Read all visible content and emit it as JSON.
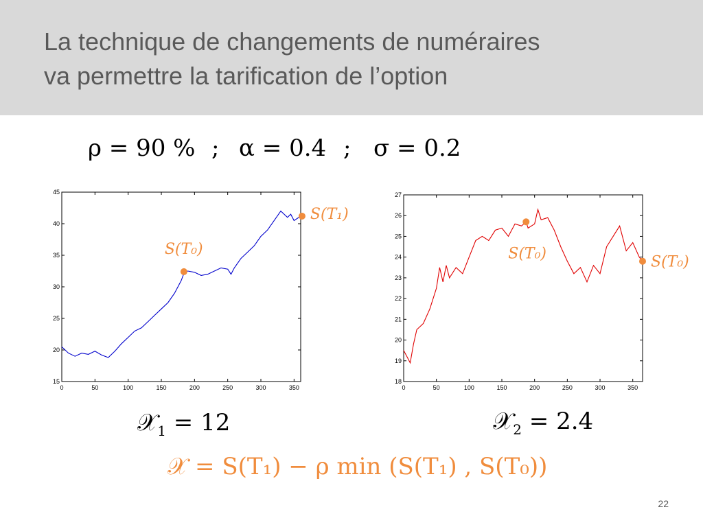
{
  "title": {
    "line1": "La technique de changements de numéraires",
    "line2": "va permettre la tarification de l’option"
  },
  "params": {
    "rho": "ρ = 90 %",
    "sep1": ";",
    "alpha": "α = 0.4",
    "sep2": ";",
    "sigma": "σ = 0.2"
  },
  "results": {
    "x1": {
      "symbol": "𝒳",
      "sub": "1",
      "value": " = 12"
    },
    "x2": {
      "symbol": "𝒳",
      "sub": "2",
      "value": " = 2.4"
    }
  },
  "formula": "𝒳 = S(T₁) − ρ min (S(T₁) , S(T₀))",
  "page_number": "22",
  "colors": {
    "annotation": "#f08c3c",
    "series1": "#0000cc",
    "series2": "#e00000"
  },
  "chart_data": [
    {
      "type": "line",
      "xlim": [
        0,
        360
      ],
      "ylim": [
        15,
        45
      ],
      "xticks": [
        0,
        50,
        100,
        150,
        200,
        250,
        300,
        350
      ],
      "yticks": [
        15,
        20,
        25,
        30,
        35,
        40,
        45
      ],
      "grid": false,
      "series": [
        {
          "color": "#0000cc",
          "x": [
            0,
            10,
            20,
            30,
            40,
            50,
            60,
            70,
            80,
            90,
            100,
            110,
            120,
            130,
            140,
            150,
            160,
            170,
            180,
            185,
            190,
            200,
            210,
            220,
            230,
            240,
            250,
            255,
            260,
            270,
            280,
            290,
            300,
            310,
            320,
            330,
            340,
            345,
            350,
            360
          ],
          "y": [
            20.5,
            19.5,
            19,
            19.5,
            19.3,
            19.8,
            19.2,
            18.8,
            19.8,
            21,
            22,
            23,
            23.5,
            24.5,
            25.5,
            26.5,
            27.5,
            29,
            31,
            32.4,
            32.5,
            32.3,
            31.8,
            32,
            32.5,
            33,
            32.8,
            32,
            33,
            34.5,
            35.5,
            36.5,
            38,
            39,
            40.5,
            42,
            41,
            41.5,
            40.5,
            41.2
          ]
        }
      ],
      "annotations": [
        {
          "label": "S(T₀)",
          "x": 184,
          "y": 32.4
        },
        {
          "label": "S(T₁)",
          "x": 362,
          "y": 41.2
        }
      ]
    },
    {
      "type": "line",
      "xlim": [
        0,
        365
      ],
      "ylim": [
        18,
        27
      ],
      "xticks": [
        0,
        50,
        100,
        150,
        200,
        250,
        300,
        350
      ],
      "yticks": [
        18,
        19,
        20,
        21,
        22,
        23,
        24,
        25,
        26,
        27
      ],
      "grid": false,
      "series": [
        {
          "color": "#e00000",
          "x": [
            0,
            5,
            10,
            15,
            20,
            30,
            40,
            50,
            55,
            60,
            65,
            70,
            80,
            90,
            100,
            110,
            120,
            130,
            140,
            150,
            160,
            170,
            180,
            187,
            190,
            200,
            205,
            210,
            220,
            230,
            240,
            250,
            260,
            270,
            280,
            290,
            300,
            310,
            320,
            330,
            340,
            350,
            360,
            365
          ],
          "y": [
            19.5,
            19.2,
            18.9,
            19.8,
            20.5,
            20.8,
            21.5,
            22.5,
            23.5,
            22.8,
            23.6,
            23,
            23.5,
            23.2,
            24,
            24.8,
            25,
            24.8,
            25.3,
            25.4,
            25,
            25.6,
            25.5,
            25.7,
            25.4,
            25.6,
            26.3,
            25.8,
            25.9,
            25.3,
            24.5,
            23.8,
            23.2,
            23.5,
            22.8,
            23.6,
            23.2,
            24.5,
            25,
            25.5,
            24.3,
            24.7,
            24,
            23.8
          ]
        }
      ],
      "annotations": [
        {
          "label": "S(T₀)",
          "x": 187,
          "y": 25.7
        },
        {
          "label": "S(T₀)",
          "x": 365,
          "y": 23.8
        }
      ]
    }
  ]
}
